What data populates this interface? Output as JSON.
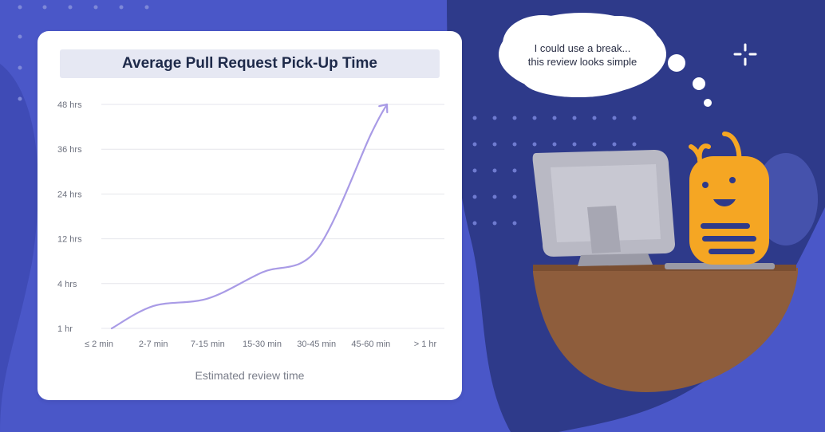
{
  "chart_data": {
    "type": "line",
    "title": "Average Pull Request Pick-Up Time",
    "xlabel": "Estimated review time",
    "ylabel": "",
    "categories": [
      "≤ 2 min",
      "2-7 min",
      "7-15 min",
      "15-30 min",
      "30-45 min",
      "45-60 min",
      "> 1 hr"
    ],
    "y_ticks": [
      "1 hr",
      "4 hrs",
      "12 hrs",
      "24 hrs",
      "36 hrs",
      "48 hrs"
    ],
    "series": [
      {
        "values": [
          1,
          2.5,
          3,
          6,
          10,
          40,
          48
        ]
      }
    ],
    "grid": true,
    "line_color": "#a99be6"
  },
  "thought_bubble": {
    "line1": "I could use a break...",
    "line2": "this review looks simple"
  },
  "colors": {
    "background": "#4a57c8",
    "dark_blue": "#2e3a8a",
    "desk": "#8e5d3c",
    "bee_body": "#f5a623"
  },
  "icons": [
    "sparkle-icon",
    "bee-character",
    "computer-monitor"
  ]
}
